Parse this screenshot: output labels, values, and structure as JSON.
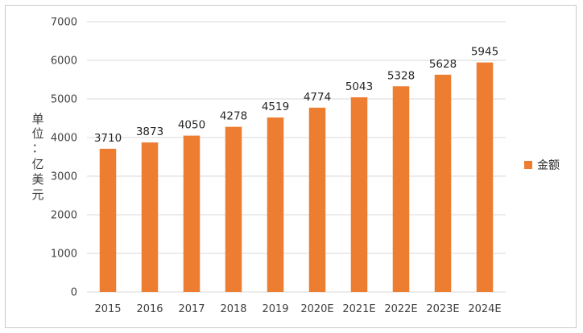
{
  "chart_data": {
    "type": "bar",
    "categories": [
      "2015",
      "2016",
      "2017",
      "2018",
      "2019",
      "2020E",
      "2021E",
      "2022E",
      "2023E",
      "2024E"
    ],
    "series": [
      {
        "name": "金额",
        "values": [
          3710,
          3873,
          4050,
          4278,
          4519,
          4774,
          5043,
          5328,
          5628,
          5945
        ],
        "color": "#ED7D31"
      }
    ],
    "ylabel": "单位：亿美元",
    "ylim": [
      0,
      7000
    ],
    "yticks": [
      0,
      1000,
      2000,
      3000,
      4000,
      5000,
      6000,
      7000
    ],
    "grid": true,
    "legend_position": "right"
  }
}
